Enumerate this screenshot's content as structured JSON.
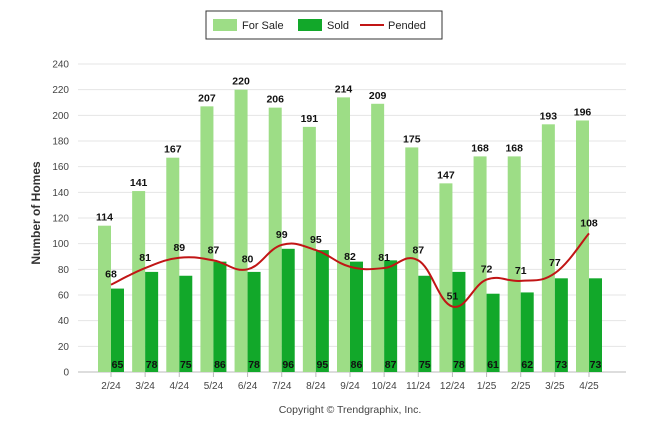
{
  "chart_data": {
    "type": "bar",
    "categories": [
      "2/24",
      "3/24",
      "4/24",
      "5/24",
      "6/24",
      "7/24",
      "8/24",
      "9/24",
      "10/24",
      "11/24",
      "12/24",
      "1/25",
      "2/25",
      "3/25",
      "4/25"
    ],
    "series": [
      {
        "name": "For Sale",
        "type": "bar",
        "color": "#9ddd86",
        "values": [
          114,
          141,
          167,
          207,
          220,
          206,
          191,
          214,
          209,
          175,
          147,
          168,
          168,
          193,
          196
        ]
      },
      {
        "name": "Sold",
        "type": "bar",
        "color": "#12a82a",
        "values": [
          65,
          78,
          75,
          86,
          78,
          96,
          95,
          86,
          87,
          75,
          78,
          61,
          62,
          73,
          73
        ]
      },
      {
        "name": "Pended",
        "type": "line",
        "color": "#c11515",
        "values": [
          68,
          81,
          89,
          87,
          80,
          99,
          95,
          82,
          81,
          87,
          51,
          72,
          71,
          77,
          108
        ]
      }
    ],
    "ylabel": "Number of Homes",
    "ylim": [
      0,
      240
    ],
    "yticks": [
      0,
      20,
      40,
      60,
      80,
      100,
      120,
      140,
      160,
      180,
      200,
      220,
      240
    ],
    "grid": true,
    "legend_position": "top-center"
  },
  "footer": {
    "copyright": "Copyright © Trendgraphix, Inc."
  }
}
